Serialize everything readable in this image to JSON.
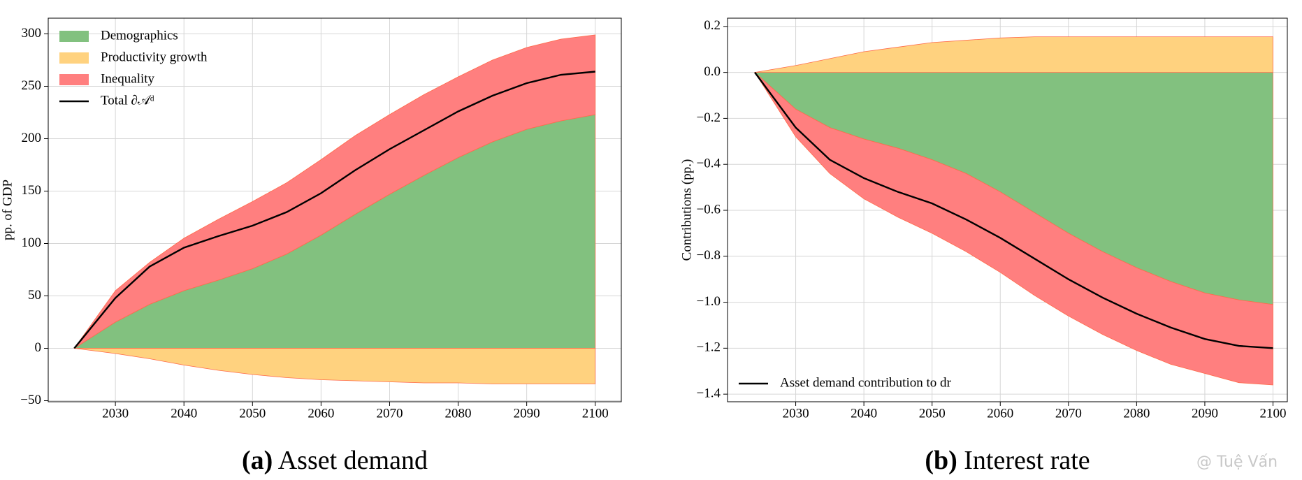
{
  "chart_data": [
    {
      "type": "area",
      "caption_label": "(a)",
      "caption": "Asset demand",
      "ylabel": "pp. of GDP",
      "x": [
        2024,
        2030,
        2035,
        2040,
        2045,
        2050,
        2055,
        2060,
        2065,
        2070,
        2075,
        2080,
        2085,
        2090,
        2095,
        2100
      ],
      "xlim": [
        2020.2,
        2103.8
      ],
      "ylim": [
        -51,
        315
      ],
      "xticks": [
        2030,
        2040,
        2050,
        2060,
        2070,
        2080,
        2090,
        2100
      ],
      "yticks": [
        {
          "value": -50,
          "label": "−50"
        },
        0,
        50,
        100,
        150,
        200,
        250,
        300
      ],
      "grid": true,
      "legend": "upper left",
      "series": [
        {
          "name": "Demographics",
          "color": "#82c17f",
          "values": [
            0,
            25,
            42,
            55,
            65,
            76,
            90,
            108,
            128,
            147,
            165,
            182,
            197,
            209,
            217,
            223
          ]
        },
        {
          "name": "Productivity growth",
          "color": "#ffd27f",
          "values": [
            0,
            -5,
            -10,
            -16,
            -21,
            -25,
            -28,
            -30,
            -31,
            -32,
            -33,
            -33,
            -34,
            -34,
            -34,
            -34
          ]
        },
        {
          "name": "Inequality",
          "color": "#ff7f7f",
          "values": [
            0,
            30,
            40,
            50,
            58,
            64,
            68,
            72,
            75,
            76,
            77,
            77,
            78,
            78,
            78,
            76
          ]
        },
        {
          "name": "Total ∂𝒜ᵈ",
          "color": "#000000",
          "type": "line",
          "values": [
            0,
            48,
            78,
            96,
            107,
            117,
            130,
            148,
            170,
            190,
            208,
            226,
            241,
            253,
            261,
            264
          ]
        }
      ]
    },
    {
      "type": "area",
      "caption_label": "(b)",
      "caption": "Interest rate",
      "ylabel": "Contributions (pp.)",
      "x": [
        2024,
        2030,
        2035,
        2040,
        2045,
        2050,
        2055,
        2060,
        2065,
        2070,
        2075,
        2080,
        2085,
        2090,
        2095,
        2100
      ],
      "xlim": [
        2020.0,
        2102.1
      ],
      "ylim": [
        -1.433,
        0.236
      ],
      "xticks": [
        2030,
        2040,
        2050,
        2060,
        2070,
        2080,
        2090,
        2100
      ],
      "yticks": [
        {
          "value": -1.4,
          "label": "−1.4"
        },
        {
          "value": -1.2,
          "label": "−1.2"
        },
        {
          "value": -1.0,
          "label": "−1.0"
        },
        {
          "value": -0.8,
          "label": "−0.8"
        },
        {
          "value": -0.6,
          "label": "−0.6"
        },
        {
          "value": -0.4,
          "label": "−0.4"
        },
        {
          "value": -0.2,
          "label": "−0.2"
        },
        {
          "value": 0,
          "label": "0.0"
        },
        0.2
      ],
      "grid": true,
      "legend": "lower left",
      "series": [
        {
          "color": "#82c17f",
          "values": [
            0,
            -0.16,
            -0.24,
            -0.29,
            -0.33,
            -0.38,
            -0.44,
            -0.52,
            -0.61,
            -0.7,
            -0.78,
            -0.85,
            -0.91,
            -0.96,
            -0.99,
            -1.01
          ]
        },
        {
          "color": "#ffd27f",
          "values": [
            0,
            0.03,
            0.06,
            0.09,
            0.11,
            0.13,
            0.14,
            0.15,
            0.155,
            0.155,
            0.155,
            0.155,
            0.155,
            0.155,
            0.155,
            0.155
          ]
        },
        {
          "color": "#ff7f7f",
          "values": [
            0,
            -0.12,
            -0.2,
            -0.26,
            -0.3,
            -0.32,
            -0.34,
            -0.35,
            -0.36,
            -0.36,
            -0.36,
            -0.36,
            -0.36,
            -0.35,
            -0.36,
            -0.35
          ]
        },
        {
          "name": "Asset demand contribution to dr",
          "color": "#000000",
          "type": "line",
          "values": [
            0,
            -0.24,
            -0.38,
            -0.46,
            -0.52,
            -0.57,
            -0.64,
            -0.72,
            -0.81,
            -0.9,
            -0.98,
            -1.05,
            -1.11,
            -1.16,
            -1.19,
            -1.2
          ]
        }
      ]
    }
  ],
  "watermark": "@ Tuệ Vấn"
}
